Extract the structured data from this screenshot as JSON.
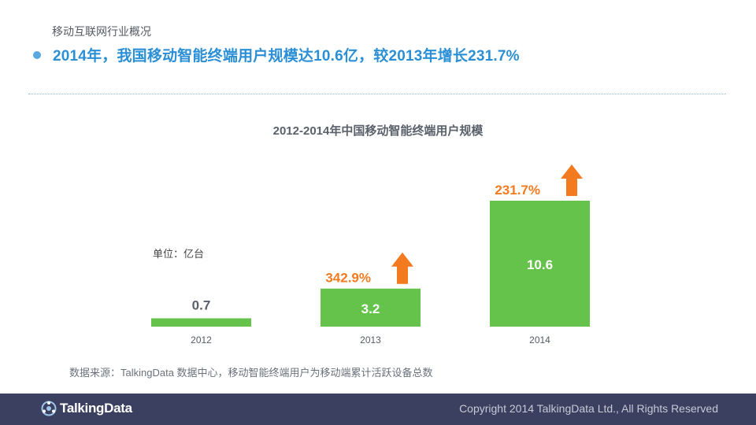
{
  "header": {
    "section_label": "移动互联网行业概况",
    "headline": "2014年，我国移动智能终端用户规模达10.6亿，较2013年增长231.7%"
  },
  "chart_data": {
    "type": "bar",
    "title": "2012-2014年中国移动智能终端用户规模",
    "unit_label": "单位：亿台",
    "categories": [
      "2012",
      "2013",
      "2014"
    ],
    "values": [
      0.7,
      3.2,
      10.6
    ],
    "value_labels": [
      "0.7",
      "3.2",
      "10.6"
    ],
    "growth": [
      null,
      "342.9%",
      "231.7%"
    ],
    "xlabel": "",
    "ylabel": "",
    "ylim": [
      0,
      10.6
    ],
    "grid": false,
    "colors": {
      "bar": "#65c24b",
      "growth": "#f47a1f",
      "value_dark": "#5b616b",
      "value_light": "#ffffff",
      "axis_text": "#555a63"
    }
  },
  "source": "数据来源：TalkingData 数据中心，移动智能终端用户为移动端累计活跃设备总数",
  "footer": {
    "brand": "TalkingData",
    "copyright": "Copyright 2014 TalkingData Ltd., All Rights Reserved"
  }
}
